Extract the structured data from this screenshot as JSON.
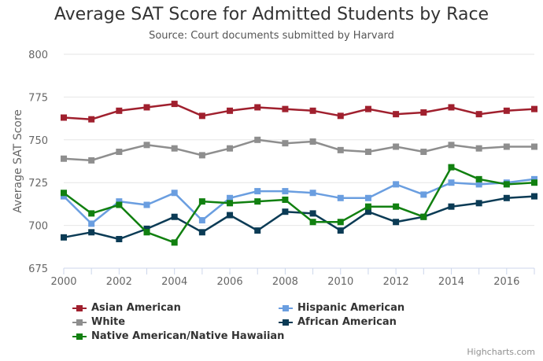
{
  "chart_data": {
    "type": "line",
    "title": "Average SAT Score for Admitted Students by Race",
    "subtitle": "Source: Court documents submitted by Harvard",
    "xlabel": "",
    "ylabel": "Average SAT Score",
    "ylim": [
      675,
      800
    ],
    "yticks": [
      675,
      700,
      725,
      750,
      775,
      800
    ],
    "xticks": [
      2000,
      2002,
      2004,
      2006,
      2008,
      2010,
      2012,
      2014,
      2016
    ],
    "x": [
      2000,
      2001,
      2002,
      2003,
      2004,
      2005,
      2006,
      2007,
      2008,
      2009,
      2010,
      2011,
      2012,
      2013,
      2014,
      2015,
      2016,
      2017
    ],
    "grid": true,
    "legend_position": "bottom",
    "series": [
      {
        "name": "Asian American",
        "color": "#a0202e",
        "values": [
          763,
          762,
          767,
          769,
          771,
          764,
          767,
          769,
          768,
          767,
          764,
          768,
          765,
          766,
          769,
          765,
          767,
          768
        ]
      },
      {
        "name": "Hispanic American",
        "color": "#6a9ee0",
        "values": [
          717,
          701,
          714,
          712,
          719,
          703,
          716,
          720,
          720,
          719,
          716,
          716,
          724,
          718,
          725,
          724,
          725,
          727
        ]
      },
      {
        "name": "White",
        "color": "#8e8e8e",
        "values": [
          739,
          738,
          743,
          747,
          745,
          741,
          745,
          750,
          748,
          749,
          744,
          743,
          746,
          743,
          747,
          745,
          746,
          746
        ]
      },
      {
        "name": "African American",
        "color": "#0b3b55",
        "values": [
          693,
          696,
          692,
          698,
          705,
          696,
          706,
          697,
          708,
          707,
          697,
          708,
          702,
          705,
          711,
          713,
          716,
          717
        ]
      },
      {
        "name": "Native American/Native Hawaiian",
        "color": "#118010",
        "values": [
          719,
          707,
          712,
          696,
          690,
          714,
          713,
          714,
          715,
          702,
          702,
          711,
          711,
          705,
          734,
          727,
          724,
          725
        ]
      }
    ]
  },
  "credit": "Highcharts.com"
}
